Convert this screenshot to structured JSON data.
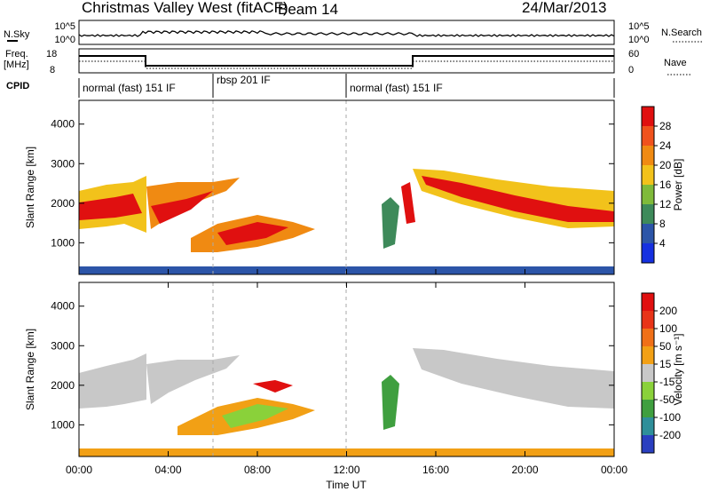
{
  "header": {
    "title": "Christmas Valley West (fitACF)",
    "beam": "Beam 14",
    "date": "24/Mar/2013"
  },
  "top_panels": {
    "nsky_label": "N.Sky",
    "nsky_ticks": [
      "10^5",
      "10^0"
    ],
    "nsearch_label": "N.Search",
    "nsearch_ticks": [
      "10^5",
      "10^0"
    ],
    "freq_label_1": "Freq.",
    "freq_label_2": "[MHz]",
    "freq_ticks": [
      "18",
      "8"
    ],
    "nave_label": "Nave",
    "nave_ticks": [
      "60",
      "0"
    ],
    "cpid_label": "CPID",
    "cpid_segments": [
      {
        "label": "normal (fast) 151 IF",
        "start": 0,
        "end": 6
      },
      {
        "label": "rbsp 201 IF",
        "start": 6,
        "end": 12
      },
      {
        "label": "normal (fast) 151 IF",
        "start": 12,
        "end": 24
      }
    ]
  },
  "chart_data": [
    {
      "type": "heatmap",
      "name": "power-panel",
      "ylabel": "Slant Range [km]",
      "yticks": [
        "1000",
        "2000",
        "3000",
        "4000"
      ],
      "ylim": [
        200,
        4600
      ],
      "xlim": [
        0,
        24
      ],
      "colorbar_label": "Power [dB]",
      "colorbar_ticks": [
        "4",
        "8",
        "12",
        "16",
        "20",
        "24",
        "28"
      ],
      "colorbar_colors": [
        "#1530e0",
        "#2c55a8",
        "#3e8a5a",
        "#7fba3a",
        "#f2c21b",
        "#f08a12",
        "#f0521d",
        "#e01010"
      ]
    },
    {
      "type": "heatmap",
      "name": "velocity-panel",
      "ylabel": "Slant Range [km]",
      "yticks": [
        "1000",
        "2000",
        "3000",
        "4000"
      ],
      "ylim": [
        200,
        4600
      ],
      "xlim": [
        0,
        24
      ],
      "colorbar_label": "Velocity [m s⁻¹]",
      "colorbar_ticks": [
        "200",
        "100",
        "50",
        "15",
        "-15",
        "-50",
        "-100",
        "-200"
      ],
      "colorbar_colors": [
        "#2a3fc0",
        "#2f8f9a",
        "#3f9f3f",
        "#8ad13a",
        "#c8c8c8",
        "#f2a015",
        "#f07018",
        "#e83418",
        "#e01010"
      ]
    }
  ],
  "xaxis": {
    "label": "Time UT",
    "ticks": [
      "00:00",
      "04:00",
      "08:00",
      "12:00",
      "16:00",
      "20:00",
      "00:00"
    ]
  }
}
